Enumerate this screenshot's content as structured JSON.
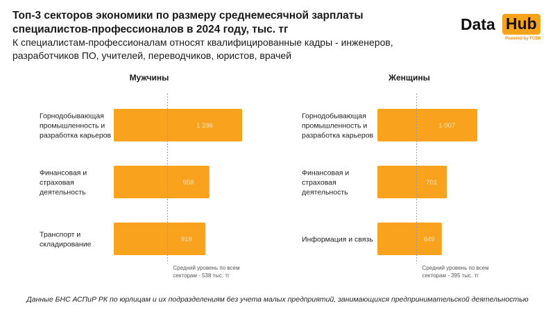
{
  "title": "Топ-3 секторов экономики по размеру среднемесячной зарплаты специалистов-профессионалов в 2024 году, тыс. тг",
  "subtitle": "К специалистам-профессионалам относят квалифицированные кадры - инженеров, разработчиков ПО, учителей, переводчиков, юристов, врачей",
  "logo": {
    "word1": "Data",
    "word2": "Hub",
    "tagline": "Powered by FCBK"
  },
  "footnote": "Данные БНС АСПиР РК по юрлицам и их подразделениям без учета малых предприятий, занимающихся предпринимательской деятельностью",
  "colors": {
    "bar": "#f9a21e",
    "bar_label": "#fde3b7",
    "avg_line": "#9a9a9a"
  },
  "chart_data": [
    {
      "type": "bar",
      "orientation": "horizontal",
      "title": "Мужчины",
      "categories": [
        [
          "Горнодобывающая",
          "промышленность и",
          "разработка карьеров"
        ],
        [
          "Финансовая и",
          "страховая",
          "деятельность"
        ],
        [
          "Транспорт и",
          "складирование"
        ]
      ],
      "values": [
        1286,
        958,
        919
      ],
      "value_labels": [
        "1 286",
        "958",
        "919"
      ],
      "reference_line": {
        "value": 538,
        "label": [
          "Средний уровень по всем",
          "секторам - 538 тыс. тг"
        ]
      }
    },
    {
      "type": "bar",
      "orientation": "horizontal",
      "title": "Женщины",
      "categories": [
        [
          "Горнодобывающая",
          "промышленность и",
          "разработка карьеров"
        ],
        [
          "Финансовая и",
          "страховая",
          "деятельность"
        ],
        [
          "Информация и связь"
        ]
      ],
      "values": [
        1007,
        701,
        649
      ],
      "value_labels": [
        "1 007",
        "701",
        "649"
      ],
      "reference_line": {
        "value": 395,
        "label": [
          "Средний уровень по всем",
          "секторам - 395 тыс. тг"
        ]
      }
    }
  ]
}
